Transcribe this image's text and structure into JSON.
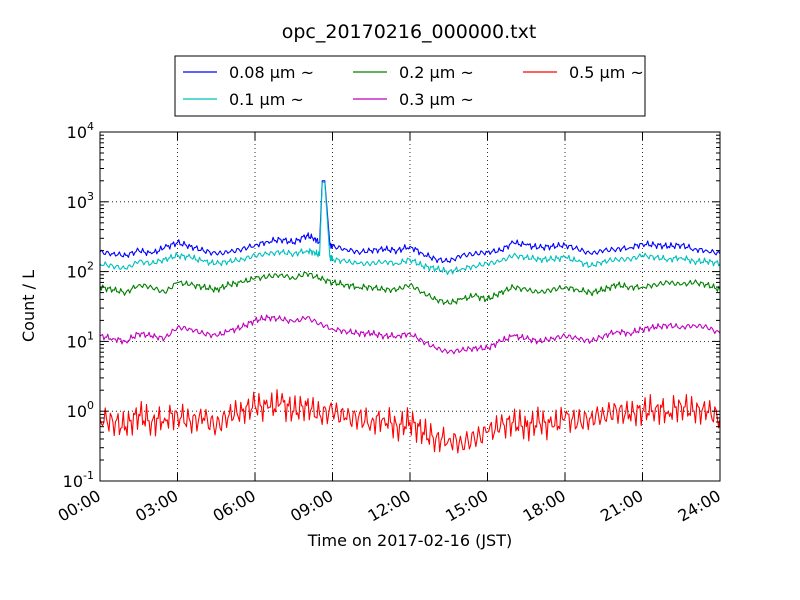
{
  "chart_data": {
    "type": "line",
    "title": "opc_20170216_000000.txt",
    "xlabel": "Time on 2017-02-16 (JST)",
    "ylabel": "Count / L",
    "x_unit": "hour",
    "xlim": [
      0,
      24
    ],
    "ylim": [
      0.1,
      10000
    ],
    "y_scale": "log",
    "grid": true,
    "legend_position": "top-center",
    "x_ticks": [
      {
        "value": 0,
        "label": "00:00"
      },
      {
        "value": 3,
        "label": "03:00"
      },
      {
        "value": 6,
        "label": "06:00"
      },
      {
        "value": 9,
        "label": "09:00"
      },
      {
        "value": 12,
        "label": "12:00"
      },
      {
        "value": 15,
        "label": "15:00"
      },
      {
        "value": 18,
        "label": "18:00"
      },
      {
        "value": 21,
        "label": "21:00"
      },
      {
        "value": 24,
        "label": "24:00"
      }
    ],
    "y_ticks": [
      {
        "value": 0.1,
        "base": "10",
        "exp": "-1"
      },
      {
        "value": 1,
        "base": "10",
        "exp": "0"
      },
      {
        "value": 10,
        "base": "10",
        "exp": "1"
      },
      {
        "value": 100,
        "base": "10",
        "exp": "2"
      },
      {
        "value": 1000,
        "base": "10",
        "exp": "3"
      },
      {
        "value": 10000,
        "base": "10",
        "exp": "4"
      }
    ],
    "series": [
      {
        "name": "0.08 μm ~",
        "color": "#0000ff",
        "x": [
          0,
          0.5,
          1,
          1.5,
          2,
          2.5,
          3,
          3.5,
          4,
          4.5,
          5,
          5.5,
          6,
          6.5,
          7,
          7.5,
          8,
          8.3,
          8.5,
          8.6,
          8.7,
          8.9,
          9,
          9.5,
          10,
          10.5,
          11,
          11.5,
          12,
          12.5,
          13,
          13.5,
          14,
          14.5,
          15,
          15.5,
          16,
          16.5,
          17,
          17.5,
          18,
          18.5,
          19,
          19.5,
          20,
          20.5,
          21,
          21.5,
          22,
          22.5,
          23,
          23.5,
          24
        ],
        "y": [
          190,
          180,
          170,
          200,
          180,
          220,
          260,
          230,
          200,
          180,
          190,
          210,
          240,
          270,
          290,
          260,
          330,
          300,
          260,
          2000,
          2000,
          240,
          230,
          210,
          190,
          200,
          210,
          200,
          230,
          180,
          150,
          140,
          170,
          180,
          190,
          200,
          260,
          240,
          220,
          230,
          240,
          210,
          180,
          200,
          210,
          220,
          250,
          240,
          230,
          240,
          210,
          200,
          180
        ]
      },
      {
        "name": "0.1 μm ~",
        "color": "#00bfbf",
        "x": [
          0,
          0.5,
          1,
          1.5,
          2,
          2.5,
          3,
          3.5,
          4,
          4.5,
          5,
          5.5,
          6,
          6.5,
          7,
          7.5,
          8,
          8.3,
          8.5,
          8.6,
          8.7,
          8.9,
          9,
          9.5,
          10,
          10.5,
          11,
          11.5,
          12,
          12.5,
          13,
          13.5,
          14,
          14.5,
          15,
          15.5,
          16,
          16.5,
          17,
          17.5,
          18,
          18.5,
          19,
          19.5,
          20,
          20.5,
          21,
          21.5,
          22,
          22.5,
          23,
          23.5,
          24
        ],
        "y": [
          130,
          120,
          110,
          140,
          130,
          150,
          170,
          160,
          140,
          130,
          140,
          150,
          170,
          180,
          190,
          180,
          200,
          190,
          170,
          1900,
          1900,
          160,
          150,
          140,
          130,
          130,
          140,
          130,
          150,
          120,
          110,
          100,
          110,
          120,
          130,
          140,
          170,
          160,
          150,
          150,
          160,
          140,
          120,
          140,
          150,
          150,
          170,
          160,
          150,
          160,
          140,
          140,
          130
        ]
      },
      {
        "name": "0.2 μm ~",
        "color": "#008000",
        "x": [
          0,
          0.5,
          1,
          1.5,
          2,
          2.5,
          3,
          3.5,
          4,
          4.5,
          5,
          5.5,
          6,
          6.5,
          7,
          7.5,
          8,
          8.5,
          9,
          9.5,
          10,
          10.5,
          11,
          11.5,
          12,
          12.5,
          13,
          13.5,
          14,
          14.5,
          15,
          15.5,
          16,
          16.5,
          17,
          17.5,
          18,
          18.5,
          19,
          19.5,
          20,
          20.5,
          21,
          21.5,
          22,
          22.5,
          23,
          23.5,
          24
        ],
        "y": [
          60,
          55,
          50,
          65,
          60,
          50,
          70,
          65,
          60,
          55,
          65,
          70,
          80,
          85,
          90,
          80,
          95,
          80,
          70,
          65,
          60,
          60,
          55,
          55,
          65,
          50,
          40,
          35,
          40,
          45,
          40,
          50,
          60,
          55,
          50,
          55,
          60,
          55,
          50,
          55,
          65,
          60,
          60,
          65,
          70,
          65,
          70,
          65,
          55
        ]
      },
      {
        "name": "0.3 μm ~",
        "color": "#bf00bf",
        "x": [
          0,
          0.5,
          1,
          1.5,
          2,
          2.5,
          3,
          3.5,
          4,
          4.5,
          5,
          5.5,
          6,
          6.5,
          7,
          7.5,
          8,
          8.5,
          9,
          9.5,
          10,
          10.5,
          11,
          11.5,
          12,
          12.5,
          13,
          13.5,
          14,
          14.5,
          15,
          15.5,
          16,
          16.5,
          17,
          17.5,
          18,
          18.5,
          19,
          19.5,
          20,
          20.5,
          21,
          21.5,
          22,
          22.5,
          23,
          23.5,
          24
        ],
        "y": [
          12,
          11,
          10,
          13,
          12,
          11,
          16,
          15,
          13,
          12,
          14,
          16,
          20,
          22,
          21,
          19,
          22,
          18,
          15,
          14,
          13,
          13,
          12,
          12,
          13,
          10,
          8,
          7,
          7.5,
          8,
          8,
          10,
          12,
          11,
          10,
          11,
          12,
          11,
          10,
          12,
          14,
          13,
          15,
          16,
          17,
          16,
          17,
          16,
          13
        ]
      },
      {
        "name": "0.5 μm ~",
        "color": "#ff0000",
        "x": [
          0,
          0.5,
          1,
          1.5,
          2,
          2.5,
          3,
          3.5,
          4,
          4.5,
          5,
          5.5,
          6,
          6.5,
          7,
          7.5,
          8,
          8.5,
          9,
          9.5,
          10,
          10.5,
          11,
          11.5,
          12,
          12.5,
          13,
          13.5,
          14,
          14.5,
          15,
          15.5,
          16,
          16.5,
          17,
          17.5,
          18,
          18.5,
          19,
          19.5,
          20,
          20.5,
          21,
          21.5,
          22,
          22.5,
          23,
          23.5,
          24
        ],
        "y": [
          0.8,
          0.7,
          0.6,
          0.9,
          0.7,
          0.8,
          0.9,
          0.7,
          0.8,
          0.6,
          0.9,
          1.0,
          1.2,
          1.1,
          1.3,
          1.0,
          1.2,
          0.9,
          1.0,
          0.8,
          0.8,
          0.7,
          0.8,
          0.6,
          0.7,
          0.5,
          0.4,
          0.4,
          0.35,
          0.4,
          0.5,
          0.6,
          0.7,
          0.6,
          0.7,
          0.6,
          0.8,
          0.7,
          0.8,
          0.9,
          1.0,
          0.9,
          1.0,
          1.1,
          1.0,
          1.2,
          1.0,
          1.0,
          0.8
        ]
      }
    ]
  }
}
